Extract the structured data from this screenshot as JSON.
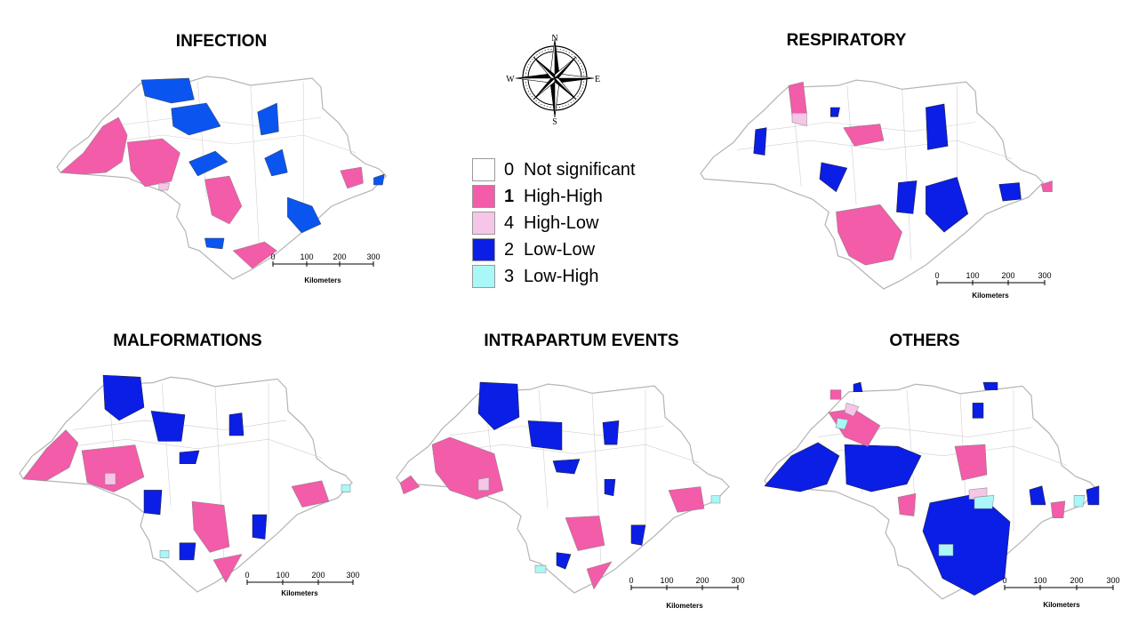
{
  "panels": [
    {
      "title": "INFECTION"
    },
    {
      "title": "RESPIRATORY"
    },
    {
      "title": "MALFORMATIONS"
    },
    {
      "title": "INTRAPARTUM EVENTS"
    },
    {
      "title": "OTHERS"
    }
  ],
  "compass": {
    "n": "N",
    "s": "S",
    "e": "E",
    "w": "W",
    "icon": "compass-rose-icon"
  },
  "legend": [
    {
      "code": "0",
      "label": "Not significant",
      "color": "#ffffff"
    },
    {
      "code": "1",
      "label": "High-High",
      "color": "#f25ca8"
    },
    {
      "code": "4",
      "label": "High-Low",
      "color": "#f6c6e8"
    },
    {
      "code": "2",
      "label": "Low-Low",
      "color": "#0a1ee6"
    },
    {
      "code": "3",
      "label": "Low-High",
      "color": "#aaf7f7"
    }
  ],
  "scale_bar": {
    "ticks": [
      "0",
      "100",
      "200",
      "300"
    ],
    "unit": "Kilometers"
  }
}
